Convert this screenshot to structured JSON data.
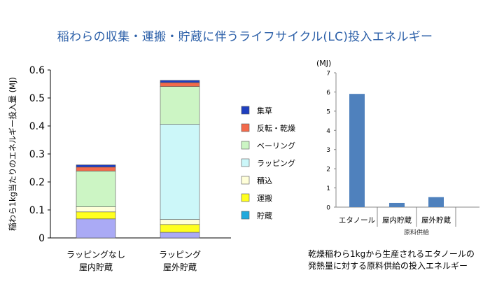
{
  "title": "稲わらの収集・運搬・貯蔵に伴うライフサイクル(LC)投入エネルギー",
  "chart_data": [
    {
      "type": "bar",
      "stacked": true,
      "ylabel": "稲わら1kg当たりのエネルギー投入量 (MJ)",
      "ylim": [
        0,
        0.6
      ],
      "yticks": [
        "0",
        "0.1",
        "0.2",
        "0.3",
        "0.4",
        "0.5",
        "0.6"
      ],
      "categories": [
        {
          "line1": "ラッピングなし",
          "line2": "屋内貯蔵"
        },
        {
          "line1": "ラッピング",
          "line2": "屋外貯蔵"
        }
      ],
      "legend_placement": "right",
      "series": [
        {
          "name": "集草",
          "color": "#1f3fbf",
          "values": [
            0.008,
            0.008
          ]
        },
        {
          "name": "反転・乾燥",
          "color": "#f26a4b",
          "values": [
            0.014,
            0.014
          ]
        },
        {
          "name": "ベーリング",
          "color": "#ccf5c4",
          "values": [
            0.128,
            0.135
          ]
        },
        {
          "name": "ラッピング",
          "color": "#ccf7f9",
          "values": [
            0,
            0.34
          ]
        },
        {
          "name": "積込",
          "color": "#ffffd9",
          "values": [
            0.018,
            0.018
          ]
        },
        {
          "name": "運搬",
          "color": "#ffff1f",
          "values": [
            0.025,
            0.028
          ]
        },
        {
          "name": "貯蔵",
          "color": "#aaaaf5",
          "values": [
            0.068,
            0.02
          ]
        }
      ],
      "legend_order": [
        0,
        1,
        2,
        3,
        4,
        5,
        6
      ],
      "legend_swatch_overrides": {
        "6": "#22a9dc"
      }
    },
    {
      "type": "bar",
      "ylabel": "(MJ)",
      "ylim": [
        0,
        7
      ],
      "yticks": [
        "0",
        "1",
        "2",
        "3",
        "4",
        "5",
        "6",
        "7"
      ],
      "categories": [
        "エタノール",
        "屋内貯蔵",
        "屋外貯蔵"
      ],
      "group_label": "原料供給",
      "values": [
        5.9,
        0.22,
        0.52
      ],
      "bar_color": "#4f81bd",
      "caption": [
        "乾燥稲わら1kgから生産されるエタノールの",
        "発熱量に対する原料供給の投入エネルギー"
      ]
    }
  ]
}
